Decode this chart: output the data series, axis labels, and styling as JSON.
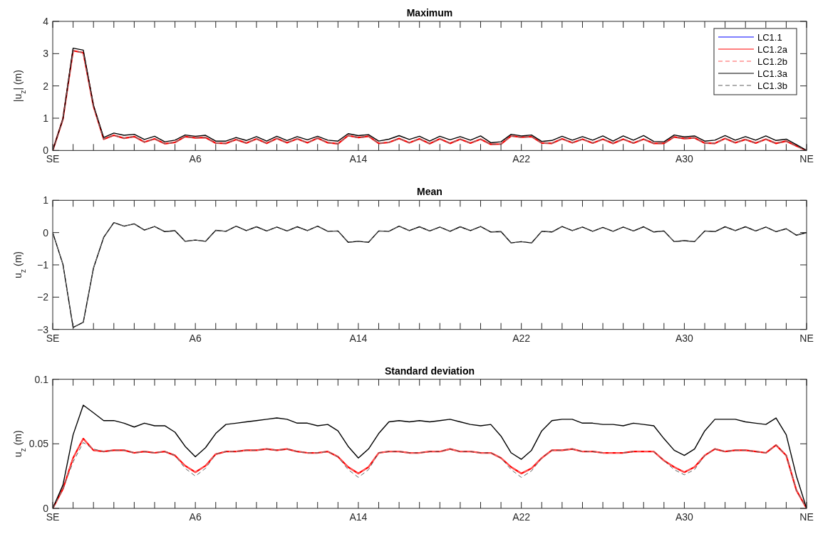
{
  "chart_data": [
    {
      "type": "line",
      "title": "Maximum",
      "ylabel": "|u$_{z}$| (m)",
      "legend": "top right",
      "categories": [
        "SE",
        null,
        null,
        null,
        null,
        null,
        null,
        null,
        null,
        null,
        null,
        null,
        null,
        null,
        "A6",
        null,
        null,
        null,
        null,
        null,
        null,
        null,
        null,
        null,
        null,
        null,
        null,
        null,
        null,
        null,
        "A14",
        null,
        null,
        null,
        null,
        null,
        null,
        null,
        null,
        null,
        null,
        null,
        null,
        null,
        null,
        null,
        "A22",
        null,
        null,
        null,
        null,
        null,
        null,
        null,
        null,
        null,
        null,
        null,
        null,
        null,
        null,
        null,
        "A30",
        null,
        null,
        null,
        null,
        null,
        null,
        null,
        null,
        null,
        null,
        null,
        "NE"
      ],
      "ylim": [
        0,
        4
      ],
      "yticks": [
        0,
        1,
        2,
        3,
        4
      ],
      "series": [
        {
          "name": "LC1.1",
          "color": "#0000ff",
          "line_style": "solid",
          "values": [
            null,
            null,
            null,
            null,
            null,
            null,
            null,
            null,
            null,
            null,
            null,
            null,
            null,
            null,
            null,
            null,
            null,
            null,
            null,
            null,
            null,
            null,
            null,
            null,
            null,
            null,
            null,
            null,
            null,
            null,
            null,
            null,
            null,
            null,
            null,
            null,
            null,
            null,
            null,
            null,
            null,
            null,
            null,
            null,
            null,
            null,
            null,
            null,
            null,
            null,
            null,
            null,
            null,
            null,
            null,
            null,
            null,
            null,
            null,
            null,
            null,
            null,
            null,
            null,
            null,
            null,
            null,
            null,
            null,
            null,
            null,
            null,
            null,
            null,
            null
          ]
        },
        {
          "name": "LC1.2a",
          "color": "#ff0000",
          "line_style": "solid",
          "values": [
            0,
            0.97,
            3.09,
            3.03,
            1.37,
            0.35,
            0.47,
            0.38,
            0.43,
            0.26,
            0.36,
            0.21,
            0.25,
            0.43,
            0.39,
            0.4,
            0.23,
            0.22,
            0.34,
            0.23,
            0.36,
            0.22,
            0.37,
            0.24,
            0.36,
            0.24,
            0.38,
            0.24,
            0.21,
            0.46,
            0.4,
            0.44,
            0.22,
            0.25,
            0.37,
            0.24,
            0.36,
            0.21,
            0.36,
            0.22,
            0.35,
            0.23,
            0.35,
            0.19,
            0.2,
            0.45,
            0.41,
            0.43,
            0.23,
            0.22,
            0.36,
            0.24,
            0.35,
            0.23,
            0.35,
            0.22,
            0.35,
            0.23,
            0.35,
            0.22,
            0.22,
            0.42,
            0.37,
            0.39,
            0.23,
            0.22,
            0.37,
            0.24,
            0.34,
            0.23,
            0.35,
            0.22,
            0.29,
            0.14,
            0
          ]
        },
        {
          "name": "LC1.2b",
          "color": "#ff5a5a",
          "line_style": "dashed",
          "values": [
            0,
            0.97,
            3.09,
            3.03,
            1.37,
            0.35,
            0.47,
            0.38,
            0.43,
            0.26,
            0.36,
            0.21,
            0.25,
            0.43,
            0.39,
            0.4,
            0.23,
            0.22,
            0.34,
            0.23,
            0.36,
            0.22,
            0.37,
            0.24,
            0.36,
            0.24,
            0.38,
            0.24,
            0.21,
            0.46,
            0.4,
            0.44,
            0.22,
            0.25,
            0.37,
            0.24,
            0.36,
            0.21,
            0.36,
            0.22,
            0.35,
            0.23,
            0.35,
            0.19,
            0.2,
            0.45,
            0.41,
            0.43,
            0.23,
            0.22,
            0.36,
            0.24,
            0.35,
            0.23,
            0.35,
            0.22,
            0.35,
            0.23,
            0.35,
            0.22,
            0.22,
            0.42,
            0.37,
            0.39,
            0.23,
            0.22,
            0.37,
            0.24,
            0.34,
            0.23,
            0.35,
            0.22,
            0.29,
            0.14,
            0
          ]
        },
        {
          "name": "LC1.3a",
          "color": "#000000",
          "line_style": "solid",
          "values": [
            0,
            0.98,
            3.17,
            3.11,
            1.4,
            0.4,
            0.54,
            0.47,
            0.5,
            0.34,
            0.44,
            0.27,
            0.32,
            0.48,
            0.44,
            0.47,
            0.29,
            0.29,
            0.4,
            0.31,
            0.43,
            0.29,
            0.44,
            0.31,
            0.43,
            0.33,
            0.44,
            0.32,
            0.29,
            0.52,
            0.46,
            0.49,
            0.29,
            0.35,
            0.46,
            0.34,
            0.44,
            0.29,
            0.44,
            0.33,
            0.43,
            0.32,
            0.45,
            0.24,
            0.27,
            0.5,
            0.45,
            0.48,
            0.28,
            0.31,
            0.44,
            0.32,
            0.43,
            0.32,
            0.45,
            0.29,
            0.45,
            0.32,
            0.46,
            0.28,
            0.27,
            0.48,
            0.42,
            0.45,
            0.29,
            0.32,
            0.46,
            0.32,
            0.43,
            0.32,
            0.45,
            0.31,
            0.35,
            0.18,
            0
          ]
        },
        {
          "name": "LC1.3b",
          "color": "#606060",
          "line_style": "dashed",
          "values": [
            0,
            0.97,
            3.09,
            3.03,
            1.37,
            0.35,
            0.47,
            0.38,
            0.43,
            0.26,
            0.36,
            0.21,
            0.25,
            0.43,
            0.39,
            0.4,
            0.23,
            0.22,
            0.34,
            0.23,
            0.36,
            0.22,
            0.37,
            0.24,
            0.36,
            0.24,
            0.38,
            0.24,
            0.21,
            0.46,
            0.4,
            0.44,
            0.22,
            0.25,
            0.37,
            0.24,
            0.36,
            0.21,
            0.36,
            0.22,
            0.35,
            0.23,
            0.35,
            0.19,
            0.2,
            0.45,
            0.41,
            0.43,
            0.23,
            0.22,
            0.36,
            0.24,
            0.35,
            0.23,
            0.35,
            0.22,
            0.35,
            0.23,
            0.35,
            0.22,
            0.22,
            0.42,
            0.37,
            0.39,
            0.23,
            0.22,
            0.37,
            0.24,
            0.34,
            0.23,
            0.35,
            0.22,
            0.29,
            0.14,
            0
          ]
        }
      ]
    },
    {
      "type": "line",
      "title": "Mean",
      "ylabel": "u$_{z}$ (m)",
      "categories": [
        "SE",
        null,
        null,
        null,
        null,
        null,
        null,
        null,
        null,
        null,
        null,
        null,
        null,
        null,
        "A6",
        null,
        null,
        null,
        null,
        null,
        null,
        null,
        null,
        null,
        null,
        null,
        null,
        null,
        null,
        null,
        "A14",
        null,
        null,
        null,
        null,
        null,
        null,
        null,
        null,
        null,
        null,
        null,
        null,
        null,
        null,
        null,
        "A22",
        null,
        null,
        null,
        null,
        null,
        null,
        null,
        null,
        null,
        null,
        null,
        null,
        null,
        null,
        null,
        "A30",
        null,
        null,
        null,
        null,
        null,
        null,
        null,
        null,
        null,
        null,
        null,
        "NE"
      ],
      "ylim": [
        -3,
        1
      ],
      "yticks": [
        -3,
        -2,
        -1,
        0,
        1
      ],
      "series": [
        {
          "color": "#0000ff",
          "line_style": "solid",
          "values": [
            null,
            null,
            null,
            null,
            null,
            null,
            null,
            null,
            null,
            null,
            null,
            null,
            null,
            null,
            null,
            null,
            null,
            null,
            null,
            null,
            null,
            null,
            null,
            null,
            null,
            null,
            null,
            null,
            null,
            null,
            null,
            null,
            null,
            null,
            null,
            null,
            null,
            null,
            null,
            null,
            null,
            null,
            null,
            null,
            null,
            null,
            null,
            null,
            null,
            null,
            null,
            null,
            null,
            null,
            null,
            null,
            null,
            null,
            null,
            null,
            null,
            null,
            null,
            null,
            null,
            null,
            null,
            null,
            null,
            null,
            null,
            null,
            null,
            null,
            null
          ]
        },
        {
          "color": "#ff0000",
          "line_style": "solid",
          "values": [
            null,
            null,
            null,
            null,
            null,
            null,
            null,
            null,
            null,
            null,
            null,
            null,
            null,
            null,
            null,
            null,
            null,
            null,
            null,
            null,
            null,
            null,
            null,
            null,
            null,
            null,
            null,
            null,
            null,
            null,
            null,
            null,
            null,
            null,
            null,
            null,
            null,
            null,
            null,
            null,
            null,
            null,
            null,
            null,
            null,
            null,
            null,
            null,
            null,
            null,
            null,
            null,
            null,
            null,
            null,
            null,
            null,
            null,
            null,
            null,
            null,
            null,
            null,
            null,
            null,
            null,
            null,
            null,
            null,
            null,
            null,
            null,
            null,
            null,
            null
          ]
        },
        {
          "color": "#ff5a5a",
          "line_style": "dashed",
          "values": [
            null,
            null,
            null,
            null,
            null,
            null,
            null,
            null,
            null,
            null,
            null,
            null,
            null,
            null,
            null,
            null,
            null,
            null,
            null,
            null,
            null,
            null,
            null,
            null,
            null,
            null,
            null,
            null,
            null,
            null,
            null,
            null,
            null,
            null,
            null,
            null,
            null,
            null,
            null,
            null,
            null,
            null,
            null,
            null,
            null,
            null,
            null,
            null,
            null,
            null,
            null,
            null,
            null,
            null,
            null,
            null,
            null,
            null,
            null,
            null,
            null,
            null,
            null,
            null,
            null,
            null,
            null,
            null,
            null,
            null,
            null,
            null,
            null,
            null,
            null
          ]
        },
        {
          "color": "#000000",
          "line_style": "solid",
          "values": [
            0,
            -0.98,
            -2.94,
            -2.78,
            -1.1,
            -0.15,
            0.31,
            0.2,
            0.27,
            0.08,
            0.19,
            0.03,
            0.06,
            -0.27,
            -0.23,
            -0.27,
            0.07,
            0.04,
            0.2,
            0.06,
            0.18,
            0.05,
            0.17,
            0.05,
            0.18,
            0.06,
            0.2,
            0.04,
            0.05,
            -0.3,
            -0.27,
            -0.3,
            0.05,
            0.04,
            0.2,
            0.06,
            0.18,
            0.05,
            0.17,
            0.04,
            0.18,
            0.06,
            0.19,
            0.02,
            0.03,
            -0.32,
            -0.28,
            -0.32,
            0.04,
            0.02,
            0.19,
            0.06,
            0.17,
            0.04,
            0.16,
            0.04,
            0.17,
            0.05,
            0.18,
            0.02,
            0.05,
            -0.28,
            -0.25,
            -0.28,
            0.05,
            0.03,
            0.18,
            0.06,
            0.18,
            0.05,
            0.17,
            0.03,
            0.12,
            -0.08,
            0
          ]
        },
        {
          "color": "#606060",
          "line_style": "dashed",
          "values": [
            0,
            -0.98,
            -2.94,
            -2.78,
            -1.1,
            -0.15,
            0.31,
            0.2,
            0.27,
            0.08,
            0.19,
            0.03,
            0.06,
            -0.27,
            -0.23,
            -0.27,
            0.07,
            0.04,
            0.2,
            0.06,
            0.18,
            0.05,
            0.17,
            0.05,
            0.18,
            0.06,
            0.2,
            0.04,
            0.05,
            -0.3,
            -0.27,
            -0.3,
            0.05,
            0.04,
            0.2,
            0.06,
            0.18,
            0.05,
            0.17,
            0.04,
            0.18,
            0.06,
            0.19,
            0.02,
            0.03,
            -0.32,
            -0.28,
            -0.32,
            0.04,
            0.02,
            0.19,
            0.06,
            0.17,
            0.04,
            0.16,
            0.04,
            0.17,
            0.05,
            0.18,
            0.02,
            0.05,
            -0.28,
            -0.25,
            -0.28,
            0.05,
            0.03,
            0.18,
            0.06,
            0.18,
            0.05,
            0.17,
            0.03,
            0.12,
            -0.08,
            0
          ]
        }
      ]
    },
    {
      "type": "line",
      "title": "Standard deviation",
      "ylabel": "u$_{z}$ (m)",
      "categories": [
        "SE",
        null,
        null,
        null,
        null,
        null,
        null,
        null,
        null,
        null,
        null,
        null,
        null,
        null,
        "A6",
        null,
        null,
        null,
        null,
        null,
        null,
        null,
        null,
        null,
        null,
        null,
        null,
        null,
        null,
        null,
        "A14",
        null,
        null,
        null,
        null,
        null,
        null,
        null,
        null,
        null,
        null,
        null,
        null,
        null,
        null,
        null,
        "A22",
        null,
        null,
        null,
        null,
        null,
        null,
        null,
        null,
        null,
        null,
        null,
        null,
        null,
        null,
        null,
        "A30",
        null,
        null,
        null,
        null,
        null,
        null,
        null,
        null,
        null,
        null,
        null,
        "NE"
      ],
      "ylim": [
        0,
        0.1
      ],
      "yticks": [
        0,
        0.05,
        0.1
      ],
      "series": [
        {
          "color": "#0000ff",
          "line_style": "solid",
          "values": [
            null,
            null,
            null,
            null,
            null,
            null,
            null,
            null,
            null,
            null,
            null,
            null,
            null,
            null,
            null,
            null,
            null,
            null,
            null,
            null,
            null,
            null,
            null,
            null,
            null,
            null,
            null,
            null,
            null,
            null,
            null,
            null,
            null,
            null,
            null,
            null,
            null,
            null,
            null,
            null,
            null,
            null,
            null,
            null,
            null,
            null,
            null,
            null,
            null,
            null,
            null,
            null,
            null,
            null,
            null,
            null,
            null,
            null,
            null,
            null,
            null,
            null,
            null,
            null,
            null,
            null,
            null,
            null,
            null,
            null,
            null,
            null,
            null,
            null,
            null
          ]
        },
        {
          "color": "#ff0000",
          "line_style": "solid",
          "values": [
            0,
            0.015,
            0.039,
            0.054,
            0.045,
            0.044,
            0.045,
            0.045,
            0.043,
            0.044,
            0.043,
            0.044,
            0.041,
            0.033,
            0.028,
            0.033,
            0.042,
            0.044,
            0.044,
            0.045,
            0.045,
            0.046,
            0.045,
            0.046,
            0.044,
            0.043,
            0.043,
            0.044,
            0.04,
            0.032,
            0.027,
            0.032,
            0.043,
            0.044,
            0.044,
            0.043,
            0.043,
            0.044,
            0.044,
            0.046,
            0.044,
            0.044,
            0.043,
            0.043,
            0.039,
            0.032,
            0.027,
            0.031,
            0.039,
            0.045,
            0.045,
            0.046,
            0.044,
            0.044,
            0.043,
            0.043,
            0.043,
            0.044,
            0.044,
            0.044,
            0.037,
            0.032,
            0.028,
            0.032,
            0.041,
            0.046,
            0.044,
            0.045,
            0.045,
            0.044,
            0.043,
            0.049,
            0.041,
            0.014,
            0
          ]
        },
        {
          "color": "#ff5a5a",
          "line_style": "dashed",
          "values": [
            0,
            0.015,
            0.039,
            0.054,
            0.045,
            0.044,
            0.045,
            0.045,
            0.043,
            0.044,
            0.043,
            0.044,
            0.041,
            0.033,
            0.028,
            0.033,
            0.042,
            0.044,
            0.044,
            0.045,
            0.045,
            0.046,
            0.045,
            0.046,
            0.044,
            0.043,
            0.043,
            0.044,
            0.04,
            0.032,
            0.027,
            0.032,
            0.043,
            0.044,
            0.044,
            0.043,
            0.043,
            0.044,
            0.044,
            0.046,
            0.044,
            0.044,
            0.043,
            0.043,
            0.039,
            0.032,
            0.027,
            0.031,
            0.039,
            0.045,
            0.045,
            0.046,
            0.044,
            0.044,
            0.043,
            0.043,
            0.043,
            0.044,
            0.044,
            0.044,
            0.037,
            0.032,
            0.028,
            0.032,
            0.041,
            0.046,
            0.044,
            0.045,
            0.045,
            0.044,
            0.043,
            0.049,
            0.041,
            0.014,
            0
          ]
        },
        {
          "color": "#000000",
          "line_style": "solid",
          "values": [
            0,
            0.018,
            0.057,
            0.08,
            0.074,
            0.068,
            0.068,
            0.066,
            0.063,
            0.066,
            0.064,
            0.064,
            0.059,
            0.048,
            0.04,
            0.047,
            0.058,
            0.065,
            0.066,
            0.067,
            0.068,
            0.069,
            0.07,
            0.069,
            0.066,
            0.066,
            0.064,
            0.065,
            0.06,
            0.048,
            0.039,
            0.046,
            0.058,
            0.067,
            0.068,
            0.067,
            0.068,
            0.067,
            0.068,
            0.069,
            0.067,
            0.065,
            0.064,
            0.065,
            0.056,
            0.043,
            0.038,
            0.045,
            0.06,
            0.068,
            0.069,
            0.069,
            0.066,
            0.066,
            0.065,
            0.065,
            0.064,
            0.066,
            0.065,
            0.064,
            0.054,
            0.045,
            0.041,
            0.046,
            0.06,
            0.069,
            0.069,
            0.069,
            0.067,
            0.066,
            0.065,
            0.07,
            0.057,
            0.025,
            0
          ]
        },
        {
          "color": "#606060",
          "line_style": "dashed",
          "values": [
            0,
            0.015,
            0.036,
            0.051,
            0.046,
            0.044,
            0.045,
            0.045,
            0.043,
            0.044,
            0.043,
            0.044,
            0.041,
            0.031,
            0.025,
            0.031,
            0.042,
            0.044,
            0.044,
            0.045,
            0.045,
            0.046,
            0.045,
            0.046,
            0.044,
            0.043,
            0.043,
            0.044,
            0.04,
            0.03,
            0.024,
            0.03,
            0.043,
            0.044,
            0.044,
            0.043,
            0.043,
            0.044,
            0.044,
            0.046,
            0.044,
            0.044,
            0.043,
            0.043,
            0.039,
            0.03,
            0.024,
            0.029,
            0.039,
            0.045,
            0.045,
            0.046,
            0.044,
            0.044,
            0.043,
            null,
            0.043,
            0.044,
            null,
            0.044,
            0.037,
            0.03,
            0.026,
            0.03,
            0.041,
            0.046,
            0.044,
            0.045,
            0.045,
            0.044,
            0.043,
            0.049,
            0.041,
            0.014,
            0
          ]
        }
      ]
    }
  ]
}
